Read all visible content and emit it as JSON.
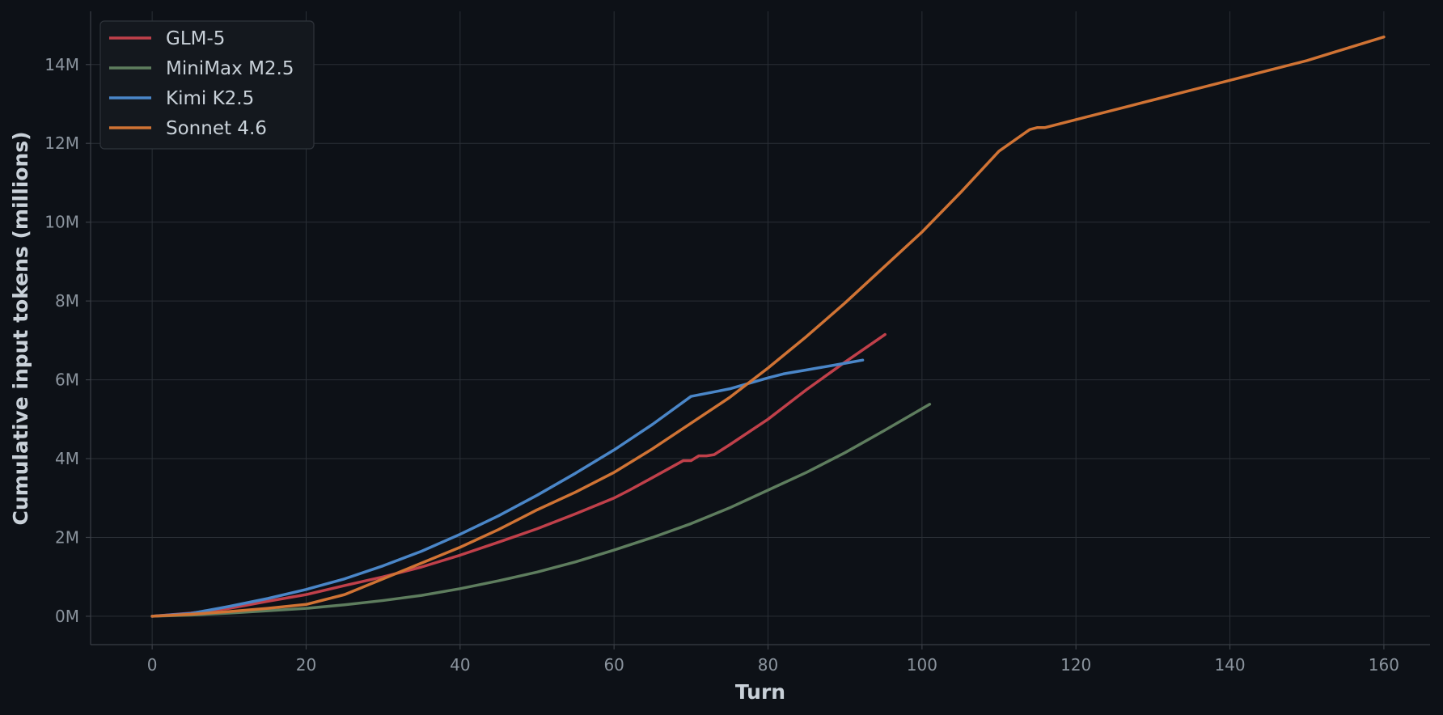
{
  "chart_data": {
    "type": "line",
    "xlabel": "Turn",
    "ylabel": "Cumulative input tokens (millions)",
    "xlim": [
      -8,
      166
    ],
    "ylim": [
      -0.72,
      15.35
    ],
    "x_ticks": [
      0,
      20,
      40,
      60,
      80,
      100,
      120,
      140,
      160
    ],
    "x_tick_labels": [
      "0",
      "20",
      "40",
      "60",
      "80",
      "100",
      "120",
      "140",
      "160"
    ],
    "y_ticks": [
      0,
      2,
      4,
      6,
      8,
      10,
      12,
      14
    ],
    "y_tick_labels": [
      "0M",
      "2M",
      "4M",
      "6M",
      "8M",
      "10M",
      "12M",
      "14M"
    ],
    "grid": true,
    "legend_position": "top-left",
    "background": "#0d1117",
    "series": [
      {
        "name": "GLM-5",
        "color": "#c0404a",
        "x": [
          0,
          5,
          10,
          15,
          20,
          25,
          30,
          35,
          40,
          45,
          50,
          55,
          60,
          62,
          65,
          69,
          70,
          71,
          72,
          73,
          75,
          80,
          85,
          90,
          95.2
        ],
        "y": [
          0,
          0.08,
          0.2,
          0.38,
          0.55,
          0.78,
          1.0,
          1.25,
          1.55,
          1.88,
          2.22,
          2.6,
          3.0,
          3.2,
          3.52,
          3.95,
          3.95,
          4.07,
          4.07,
          4.1,
          4.35,
          5.0,
          5.75,
          6.45,
          7.15
        ]
      },
      {
        "name": "MiniMax M2.5",
        "color": "#5e7d5e",
        "x": [
          0,
          5,
          10,
          15,
          20,
          25,
          30,
          35,
          40,
          45,
          50,
          55,
          60,
          65,
          70,
          75,
          80,
          85,
          90,
          95,
          101
        ],
        "y": [
          0,
          0.03,
          0.08,
          0.14,
          0.2,
          0.29,
          0.4,
          0.53,
          0.7,
          0.9,
          1.12,
          1.38,
          1.68,
          2.0,
          2.35,
          2.75,
          3.2,
          3.65,
          4.15,
          4.7,
          5.38
        ]
      },
      {
        "name": "Kimi K2.5",
        "color": "#4a86c8",
        "x": [
          0,
          5,
          10,
          15,
          20,
          25,
          30,
          35,
          40,
          45,
          50,
          55,
          60,
          65,
          70,
          75,
          80,
          82,
          85,
          90,
          92.3
        ],
        "y": [
          0,
          0.07,
          0.25,
          0.45,
          0.68,
          0.95,
          1.28,
          1.65,
          2.08,
          2.55,
          3.07,
          3.63,
          4.22,
          4.87,
          5.58,
          5.77,
          6.05,
          6.15,
          6.25,
          6.42,
          6.5
        ]
      },
      {
        "name": "Sonnet 4.6",
        "color": "#d07334",
        "x": [
          0,
          5,
          10,
          15,
          20,
          25,
          30,
          35,
          40,
          45,
          50,
          55,
          60,
          65,
          70,
          75,
          80,
          85,
          90,
          95,
          100,
          105,
          110,
          114,
          115,
          116,
          120,
          125,
          130,
          135,
          140,
          145,
          150,
          155,
          160
        ],
        "y": [
          0,
          0.05,
          0.12,
          0.2,
          0.3,
          0.55,
          0.95,
          1.35,
          1.75,
          2.2,
          2.7,
          3.15,
          3.65,
          4.25,
          4.9,
          5.55,
          6.3,
          7.1,
          7.95,
          8.85,
          9.75,
          10.75,
          11.8,
          12.35,
          12.4,
          12.4,
          12.6,
          12.85,
          13.1,
          13.35,
          13.6,
          13.85,
          14.1,
          14.4,
          14.7
        ]
      }
    ]
  }
}
